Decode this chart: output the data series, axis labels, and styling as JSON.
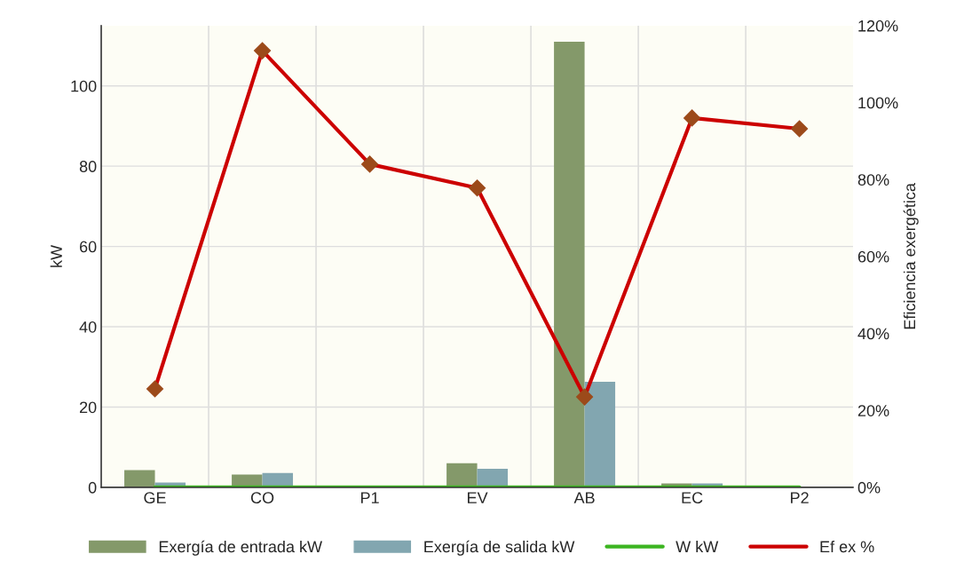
{
  "chart_data": {
    "type": "bar",
    "ylabel": "kW",
    "y2label": "Eficiencia exergética",
    "categories": [
      "GE",
      "CO",
      "P1",
      "EV",
      "AB",
      "EC",
      "P2"
    ],
    "series": [
      {
        "name": "Exergía de entrada kW",
        "color": "#84996a",
        "values": [
          4.3,
          3.2,
          null,
          6,
          111,
          1,
          null
        ]
      },
      {
        "name": "Exergía de salida kW",
        "color": "#82a6b0",
        "values": [
          1.2,
          3.6,
          null,
          4.6,
          26.3,
          1,
          null
        ]
      },
      {
        "name": "W kW",
        "type": "line",
        "color": "#3cb521",
        "values": [
          0,
          0,
          0,
          0,
          0,
          0,
          0
        ]
      },
      {
        "name": "Ef ex %",
        "type": "line",
        "axis": "y2",
        "color": "#cc0000",
        "marker": "diamond",
        "values": [
          25.6,
          113.5,
          84,
          77.8,
          23.5,
          96,
          93.2
        ]
      }
    ],
    "ylim": [
      0,
      115
    ],
    "yticks": [
      0,
      20,
      40,
      60,
      80,
      100
    ],
    "y2lim": [
      0,
      120
    ],
    "y2ticks": [
      {
        "value": 0,
        "label": "0%"
      },
      {
        "value": 20,
        "label": "20%"
      },
      {
        "value": 40,
        "label": "40%"
      },
      {
        "value": 60,
        "label": "60%"
      },
      {
        "value": 80,
        "label": "80%"
      },
      {
        "value": 100,
        "label": "100%"
      },
      {
        "value": 120,
        "label": "120%"
      }
    ],
    "grid": true,
    "legend": "bottom"
  }
}
